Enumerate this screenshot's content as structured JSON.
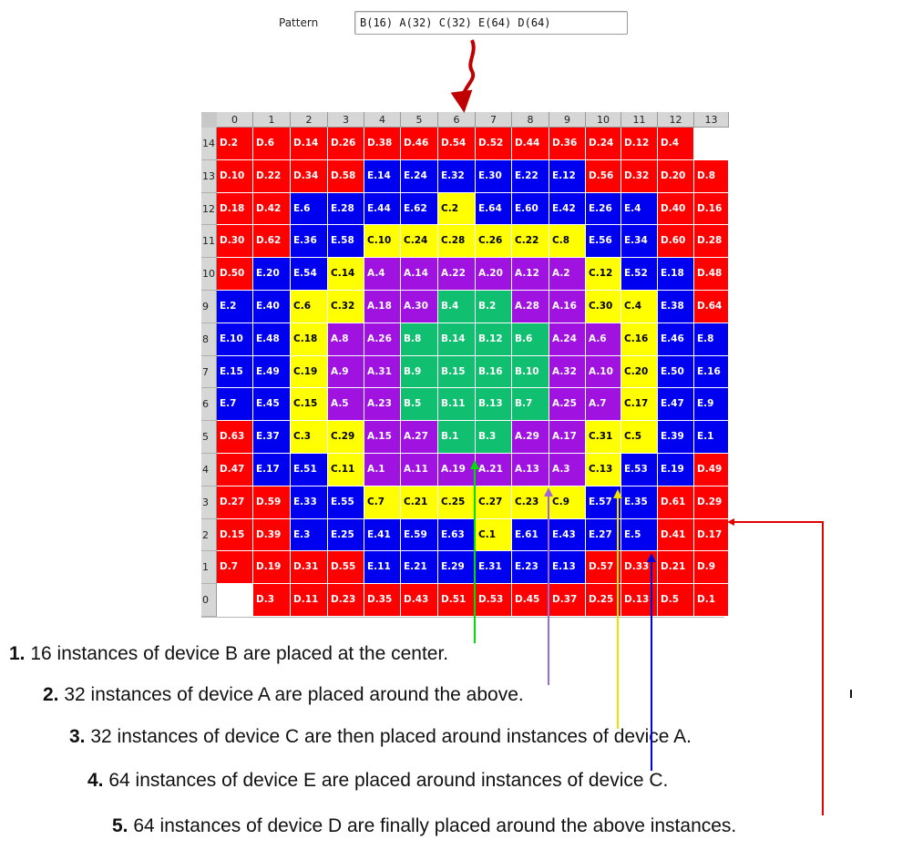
{
  "pattern": {
    "label": "Pattern",
    "value": "B(16) A(32) C(32) E(64) D(64)"
  },
  "grid": {
    "columns": [
      "0",
      "1",
      "2",
      "3",
      "4",
      "5",
      "6",
      "7",
      "8",
      "9",
      "10",
      "11",
      "12",
      "13"
    ],
    "rows": [
      {
        "label": "14",
        "cells": [
          "D.2",
          "D.6",
          "D.14",
          "D.26",
          "D.38",
          "D.46",
          "D.54",
          "D.52",
          "D.44",
          "D.36",
          "D.24",
          "D.12",
          "D.4",
          ""
        ]
      },
      {
        "label": "13",
        "cells": [
          "D.10",
          "D.22",
          "D.34",
          "D.58",
          "E.14",
          "E.24",
          "E.32",
          "E.30",
          "E.22",
          "E.12",
          "D.56",
          "D.32",
          "D.20",
          "D.8"
        ]
      },
      {
        "label": "12",
        "cells": [
          "D.18",
          "D.42",
          "E.6",
          "E.28",
          "E.44",
          "E.62",
          "C.2",
          "E.64",
          "E.60",
          "E.42",
          "E.26",
          "E.4",
          "D.40",
          "D.16"
        ]
      },
      {
        "label": "11",
        "cells": [
          "D.30",
          "D.62",
          "E.36",
          "E.58",
          "C.10",
          "C.24",
          "C.28",
          "C.26",
          "C.22",
          "C.8",
          "E.56",
          "E.34",
          "D.60",
          "D.28"
        ]
      },
      {
        "label": "10",
        "cells": [
          "D.50",
          "E.20",
          "E.54",
          "C.14",
          "A.4",
          "A.14",
          "A.22",
          "A.20",
          "A.12",
          "A.2",
          "C.12",
          "E.52",
          "E.18",
          "D.48"
        ]
      },
      {
        "label": "9",
        "cells": [
          "E.2",
          "E.40",
          "C.6",
          "C.32",
          "A.18",
          "A.30",
          "B.4",
          "B.2",
          "A.28",
          "A.16",
          "C.30",
          "C.4",
          "E.38",
          "D.64"
        ]
      },
      {
        "label": "8",
        "cells": [
          "E.10",
          "E.48",
          "C.18",
          "A.8",
          "A.26",
          "B.8",
          "B.14",
          "B.12",
          "B.6",
          "A.24",
          "A.6",
          "C.16",
          "E.46",
          "E.8"
        ]
      },
      {
        "label": "7",
        "cells": [
          "E.15",
          "E.49",
          "C.19",
          "A.9",
          "A.31",
          "B.9",
          "B.15",
          "B.16",
          "B.10",
          "A.32",
          "A.10",
          "C.20",
          "E.50",
          "E.16"
        ]
      },
      {
        "label": "6",
        "cells": [
          "E.7",
          "E.45",
          "C.15",
          "A.5",
          "A.23",
          "B.5",
          "B.11",
          "B.13",
          "B.7",
          "A.25",
          "A.7",
          "C.17",
          "E.47",
          "E.9"
        ]
      },
      {
        "label": "5",
        "cells": [
          "D.63",
          "E.37",
          "C.3",
          "C.29",
          "A.15",
          "A.27",
          "B.1",
          "B.3",
          "A.29",
          "A.17",
          "C.31",
          "C.5",
          "E.39",
          "E.1"
        ]
      },
      {
        "label": "4",
        "cells": [
          "D.47",
          "E.17",
          "E.51",
          "C.11",
          "A.1",
          "A.11",
          "A.19",
          "A.21",
          "A.13",
          "A.3",
          "C.13",
          "E.53",
          "E.19",
          "D.49"
        ]
      },
      {
        "label": "3",
        "cells": [
          "D.27",
          "D.59",
          "E.33",
          "E.55",
          "C.7",
          "C.21",
          "C.25",
          "C.27",
          "C.23",
          "C.9",
          "E.57",
          "E.35",
          "D.61",
          "D.29"
        ]
      },
      {
        "label": "2",
        "cells": [
          "D.15",
          "D.39",
          "E.3",
          "E.25",
          "E.41",
          "E.59",
          "E.63",
          "C.1",
          "E.61",
          "E.43",
          "E.27",
          "E.5",
          "D.41",
          "D.17"
        ]
      },
      {
        "label": "1",
        "cells": [
          "D.7",
          "D.19",
          "D.31",
          "D.55",
          "E.11",
          "E.21",
          "E.29",
          "E.31",
          "E.23",
          "E.13",
          "D.57",
          "D.33",
          "D.21",
          "D.9"
        ]
      },
      {
        "label": "0",
        "cells": [
          "",
          "D.3",
          "D.11",
          "D.23",
          "D.35",
          "D.43",
          "D.51",
          "D.53",
          "D.45",
          "D.37",
          "D.25",
          "D.13",
          "D.5",
          "D.1"
        ]
      }
    ]
  },
  "device_colors": {
    "A": {
      "bg": "#9f12e0",
      "fg": "#ffffff"
    },
    "B": {
      "bg": "#10c070",
      "fg": "#ffffff"
    },
    "C": {
      "bg": "#ffff00",
      "fg": "#000000"
    },
    "D": {
      "bg": "#ff0000",
      "fg": "#ffffff"
    },
    "E": {
      "bg": "#0000f0",
      "fg": "#ffffff"
    }
  },
  "arrow_colors": {
    "pattern": "#c00000",
    "step1": "#00e000",
    "step2": "#9b6ad8",
    "step3": "#f0e000",
    "step4": "#0000e0",
    "step5": "#e00000"
  },
  "captions": [
    {
      "num": "1.",
      "text": " 16 instances of device B are placed at the center."
    },
    {
      "num": "2.",
      "text": " 32 instances of device A are placed around the above."
    },
    {
      "num": "3.",
      "text": " 32 instances of device C are then placed around instances of device A."
    },
    {
      "num": "4.",
      "text": " 64 instances of device E are placed around instances of device C."
    },
    {
      "num": "5.",
      "text": " 64 instances of device D are finally placed around the above instances."
    }
  ]
}
